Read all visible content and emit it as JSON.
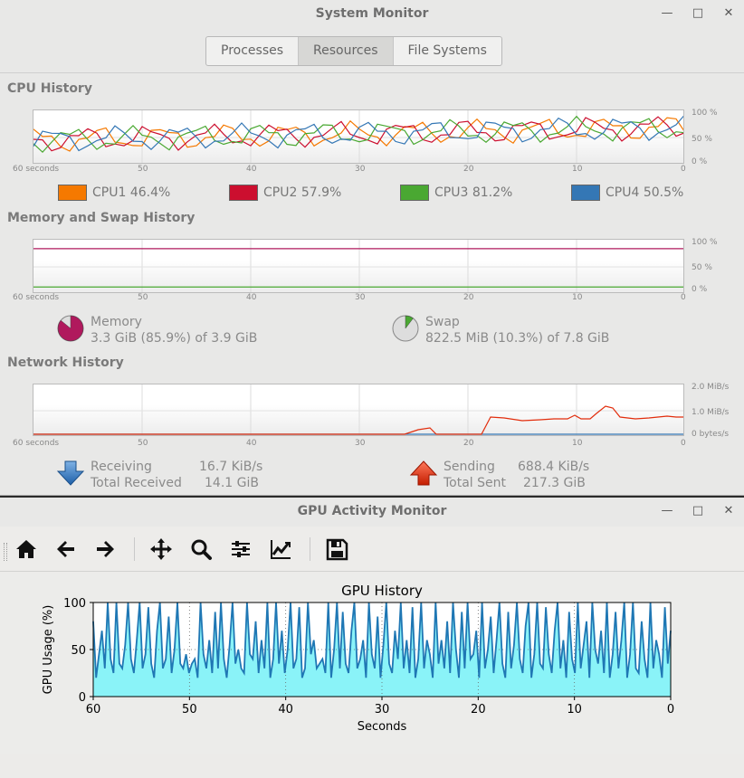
{
  "sysmon": {
    "title": "System Monitor",
    "tabs": [
      "Processes",
      "Resources",
      "File Systems"
    ],
    "active_tab": "Resources",
    "cpu": {
      "heading": "CPU History",
      "x_ticks": [
        "60 seconds",
        "50",
        "40",
        "30",
        "20",
        "10",
        "0"
      ],
      "y_ticks": [
        "100 %",
        "50 %",
        "0 %"
      ],
      "legend": [
        {
          "name": "CPU1",
          "value": "46.4%",
          "color": "#f57900"
        },
        {
          "name": "CPU2",
          "value": "57.9%",
          "color": "#cc0f2f"
        },
        {
          "name": "CPU3",
          "value": "81.2%",
          "color": "#4aa832"
        },
        {
          "name": "CPU4",
          "value": "50.5%",
          "color": "#3477b5"
        }
      ]
    },
    "memory": {
      "heading": "Memory and Swap History",
      "x_ticks": [
        "60 seconds",
        "50",
        "40",
        "30",
        "20",
        "10",
        "0"
      ],
      "y_ticks": [
        "100 %",
        "50 %",
        "0 %"
      ],
      "memory_label": "Memory",
      "memory_value": "3.3 GiB (85.9%) of 3.9 GiB",
      "memory_percent": 85.9,
      "memory_color": "#b0195d",
      "swap_label": "Swap",
      "swap_value": "822.5 MiB (10.3%) of 7.8 GiB",
      "swap_percent": 10.3,
      "swap_color": "#4aa832"
    },
    "network": {
      "heading": "Network History",
      "x_ticks": [
        "60 seconds",
        "50",
        "40",
        "30",
        "20",
        "10",
        "0"
      ],
      "y_ticks": [
        "2.0 MiB/s",
        "1.0 MiB/s",
        "0 bytes/s"
      ],
      "receiving_label": "Receiving",
      "receiving_value": "16.7 KiB/s",
      "total_received_label": "Total Received",
      "total_received_value": "14.1 GiB",
      "sending_label": "Sending",
      "sending_value": "688.4 KiB/s",
      "total_sent_label": "Total Sent",
      "total_sent_value": "217.3 GiB",
      "receive_color": "#3477b5",
      "send_color": "#e22d0c"
    }
  },
  "gpumon": {
    "title": "GPU Activity Monitor",
    "toolbar": [
      "home-icon",
      "back-icon",
      "forward-icon",
      "pan-icon",
      "zoom-icon",
      "configure-icon",
      "edit-axis-icon",
      "save-icon"
    ]
  },
  "chart_data": {
    "type": "area",
    "title": "GPU History",
    "xlabel": "Seconds",
    "ylabel": "GPU Usage (%)",
    "xlim": [
      60,
      0
    ],
    "ylim": [
      0,
      100
    ],
    "x_ticks": [
      60,
      50,
      40,
      30,
      20,
      10,
      0
    ],
    "y_ticks": [
      0,
      50,
      100
    ],
    "grid": true,
    "line_color": "#1f77b4",
    "fill_color": "#8af3f8",
    "series": [
      {
        "name": "GPU",
        "values": [
          80,
          20,
          45,
          70,
          30,
          100,
          40,
          25,
          100,
          35,
          30,
          55,
          100,
          40,
          25,
          60,
          100,
          30,
          45,
          95,
          35,
          20,
          70,
          100,
          30,
          40,
          85,
          25,
          50,
          100,
          35,
          30,
          45,
          25,
          35,
          40,
          20,
          100,
          45,
          30,
          60,
          25,
          90,
          30,
          100,
          40,
          20,
          55,
          100,
          35,
          50,
          30,
          25,
          100,
          45,
          40,
          80,
          25,
          60,
          30,
          100,
          20,
          40,
          100,
          35,
          70,
          25,
          50,
          100,
          30,
          40,
          95,
          20,
          30,
          100,
          45,
          60,
          30,
          35,
          40,
          25,
          100,
          20,
          50,
          100,
          30,
          90,
          35,
          25,
          70,
          100,
          30,
          40,
          60,
          20,
          100,
          45,
          30,
          85,
          20,
          55,
          100,
          35,
          25,
          70,
          40,
          100,
          30,
          60,
          25,
          95,
          20,
          40,
          100,
          30,
          60,
          45,
          20,
          100,
          35,
          60,
          30,
          80,
          25,
          100,
          50,
          20,
          90,
          30,
          100,
          40,
          45,
          70,
          20,
          100,
          30,
          50,
          85,
          25,
          60,
          100,
          35,
          20,
          90,
          30,
          55,
          100,
          40,
          25,
          75,
          100,
          20,
          45,
          100,
          35,
          30,
          95,
          45,
          25,
          70,
          100,
          30,
          60,
          20,
          90,
          40,
          25,
          100,
          30,
          55,
          80,
          20,
          100,
          50,
          35,
          70,
          25,
          100,
          20,
          45,
          90,
          30,
          60,
          100,
          20,
          45,
          100,
          30,
          25,
          80,
          40,
          20,
          100,
          30,
          60,
          45,
          20,
          95,
          35,
          70
        ]
      }
    ]
  }
}
